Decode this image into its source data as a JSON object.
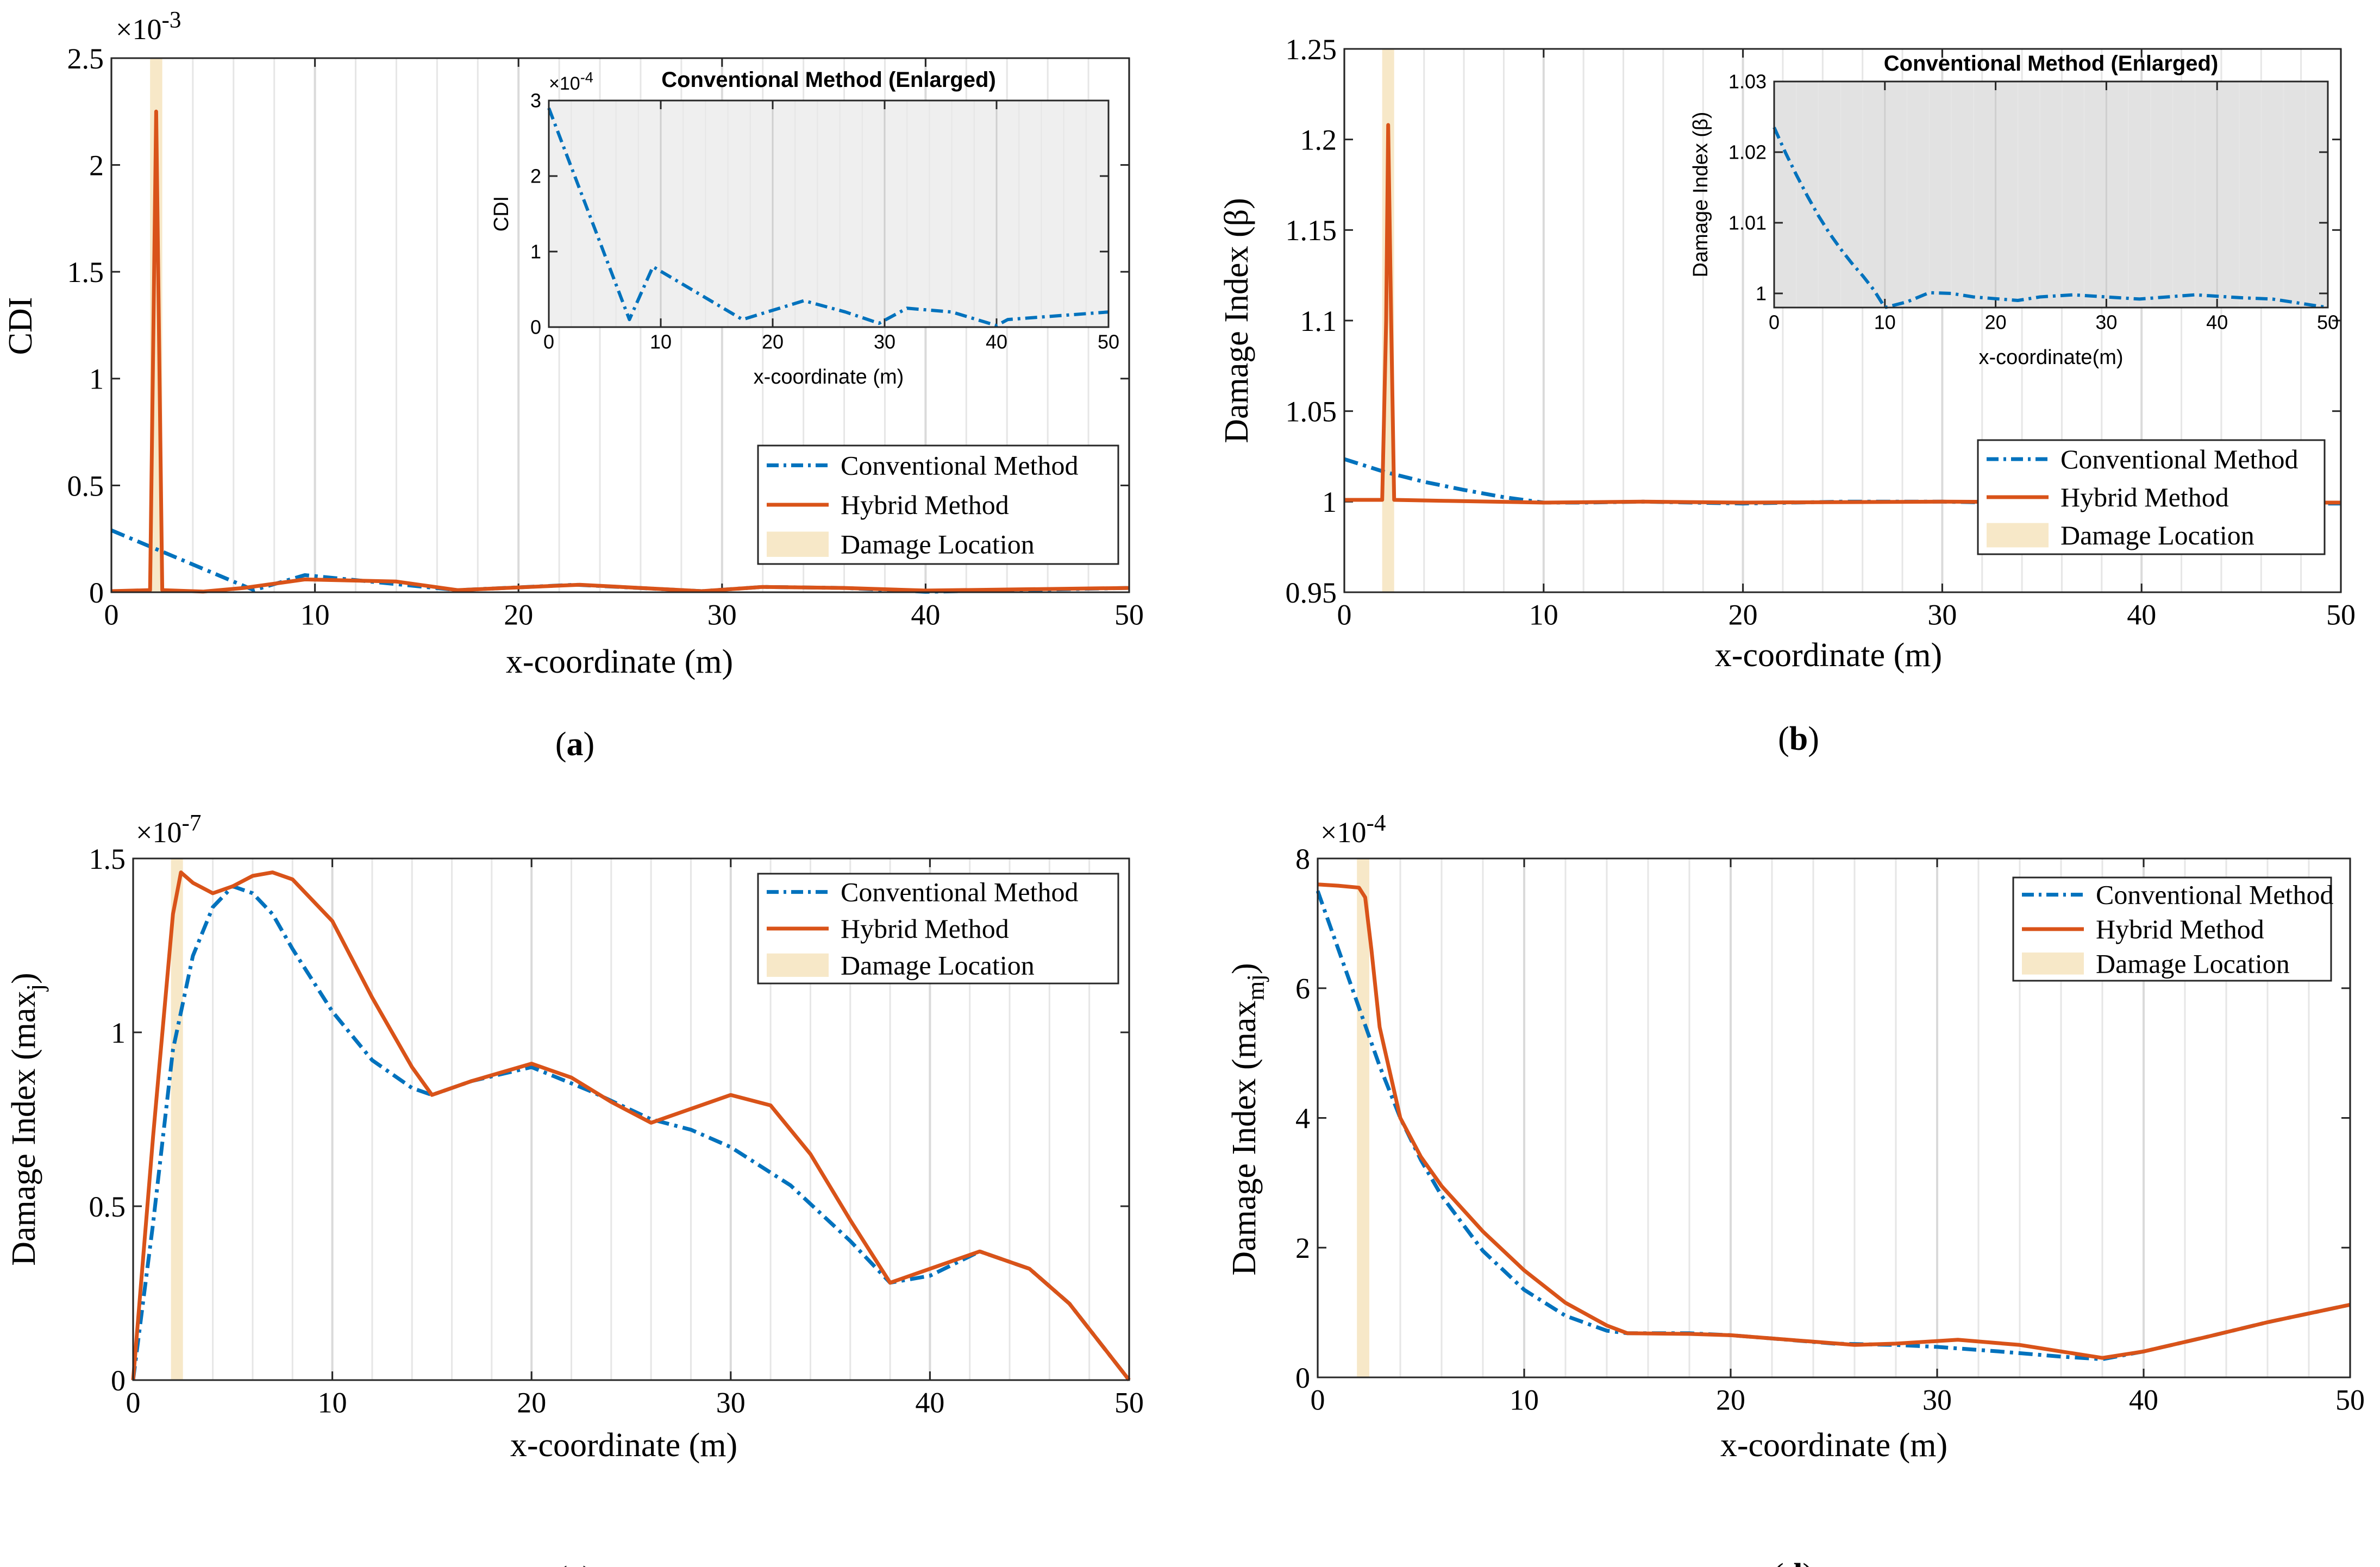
{
  "colors": {
    "conventional": "#0072BD",
    "hybrid": "#D95319",
    "damage": "#F7E8C8",
    "inset_bg_a": "#EFEFEF",
    "inset_bg_b": "#E2E2E2"
  },
  "legend_labels": [
    "Conventional Method",
    "Hybrid Method",
    "Damage Location"
  ],
  "chart_data": [
    {
      "type": "line",
      "panel": "(a)",
      "ylabel": "CDI",
      "xlabel": "x-coordinate (m)",
      "xlim": [
        0,
        50
      ],
      "ylim": [
        0,
        2.5
      ],
      "exponent": "×10-3",
      "yticks": [
        "0",
        "0.5",
        "1",
        "1.5",
        "2",
        "2.5"
      ],
      "xticks": [
        "0",
        "10",
        "20",
        "30",
        "40",
        "50"
      ],
      "legend": "bottom-right",
      "damage_band": [
        1.9,
        2.5
      ],
      "series": [
        {
          "name": "Conventional Method",
          "x": [
            0,
            7,
            9.5,
            17,
            22.8,
            29,
            32,
            36,
            40,
            50
          ],
          "y": [
            0.29,
            0.01,
            0.08,
            0.01,
            0.035,
            0.005,
            0.025,
            0.02,
            0.002,
            0.02
          ]
        },
        {
          "name": "Hybrid Method",
          "x": [
            0,
            1.9,
            2.2,
            2.5,
            4.5,
            6.5,
            9.5,
            14,
            17,
            23,
            29,
            32,
            36,
            40,
            50
          ],
          "y": [
            0.005,
            0.01,
            2.25,
            0.01,
            0.003,
            0.02,
            0.06,
            0.05,
            0.01,
            0.035,
            0.005,
            0.025,
            0.02,
            0.008,
            0.02
          ]
        }
      ],
      "inset": {
        "title": "Conventional Method (Enlarged)",
        "ylabel": "CDI",
        "xlabel": "x-coordinate (m)",
        "exponent": "×10-4",
        "xlim": [
          0,
          50
        ],
        "ylim": [
          0,
          3
        ],
        "yticks": [
          "0",
          "1",
          "2",
          "3"
        ],
        "xticks": [
          "0",
          "10",
          "20",
          "30",
          "40",
          "50"
        ],
        "series": [
          {
            "name": "Conventional Method",
            "x": [
              0,
              7.2,
              9.3,
              17.3,
              22.8,
              26.5,
              29.5,
              32,
              36,
              40,
              41,
              50
            ],
            "y": [
              2.9,
              0.1,
              0.8,
              0.1,
              0.35,
              0.2,
              0.05,
              0.25,
              0.2,
              0.02,
              0.1,
              0.2
            ]
          }
        ]
      }
    },
    {
      "type": "line",
      "panel": "(b)",
      "ylabel": "Damage Index (β)",
      "xlabel": "x-coordinate (m)",
      "xlim": [
        0,
        50
      ],
      "ylim": [
        0.95,
        1.25
      ],
      "yticks": [
        "0.95",
        "1",
        "1.05",
        "1.1",
        "1.15",
        "1.2",
        "1.25"
      ],
      "xticks": [
        "0",
        "10",
        "20",
        "30",
        "40",
        "50"
      ],
      "legend": "bottom-right",
      "damage_band": [
        1.9,
        2.5
      ],
      "series": [
        {
          "name": "Conventional Method",
          "x": [
            0,
            2,
            4,
            6,
            8,
            10,
            12,
            15,
            20,
            25,
            30,
            35,
            40,
            45,
            50
          ],
          "y": [
            1.0235,
            1.0165,
            1.011,
            1.0065,
            1.0025,
            0.9995,
            0.9995,
            1.0,
            0.999,
            1.0,
            1.0,
            0.999,
            1.0,
            0.999,
            0.999
          ]
        },
        {
          "name": "Hybrid Method",
          "x": [
            0,
            1.9,
            2.1,
            2.2,
            2.35,
            2.5,
            5,
            10,
            15,
            20,
            30,
            40,
            50
          ],
          "y": [
            1.001,
            1.001,
            1.1,
            1.208,
            1.1,
            1.001,
            1.0005,
            0.9995,
            1.0,
            0.9995,
            1.0,
            0.9995,
            0.9995
          ]
        }
      ],
      "inset": {
        "title": "Conventional Method (Enlarged)",
        "ylabel": "Damage Index (β)",
        "xlabel": "x-coordinate(m)",
        "xlim": [
          0,
          50
        ],
        "ylim": [
          0.998,
          1.03
        ],
        "yticks": [
          "1",
          "1.01",
          "1.02",
          "1.03"
        ],
        "ytick_values": [
          1.0,
          1.01,
          1.02,
          1.03
        ],
        "xticks": [
          "0",
          "10",
          "20",
          "30",
          "40",
          "50"
        ],
        "series": [
          {
            "name": "Conventional Method",
            "x": [
              0,
              1,
              2,
              3,
              4,
              5,
              6,
              7,
              8,
              9,
              10,
              12,
              14,
              16,
              18,
              22,
              24,
              27,
              30,
              33,
              38,
              42,
              45,
              50
            ],
            "y": [
              1.0235,
              1.02,
              1.0168,
              1.0138,
              1.011,
              1.0085,
              1.0063,
              1.0043,
              1.0025,
              1.0005,
              0.998,
              0.9988,
              1.0001,
              1.0,
              0.9995,
              0.999,
              0.9995,
              0.9998,
              0.9995,
              0.9992,
              0.9998,
              0.9994,
              0.9992,
              0.998
            ]
          }
        ]
      }
    },
    {
      "type": "line",
      "panel": "(c)",
      "ylabel": "Damage Index (maxj)",
      "ylabel_main": "Damage Index (max",
      "ylabel_sub": "j",
      "ylabel_close": ")",
      "xlabel": "x-coordinate (m)",
      "xlim": [
        0,
        50
      ],
      "ylim": [
        0,
        1.5
      ],
      "exponent": "×10-7",
      "yticks": [
        "0",
        "0.5",
        "1",
        "1.5"
      ],
      "xticks": [
        "0",
        "10",
        "20",
        "30",
        "40",
        "50"
      ],
      "legend": "top-right",
      "damage_band": [
        1.9,
        2.5
      ],
      "series": [
        {
          "name": "Conventional Method",
          "x": [
            0,
            1,
            2,
            3,
            4,
            5,
            6,
            7,
            8,
            10,
            12,
            14,
            15,
            17,
            20,
            23,
            26,
            28,
            30,
            33,
            36,
            38,
            40,
            42.5,
            45,
            47,
            50
          ],
          "y": [
            0,
            0.45,
            0.95,
            1.22,
            1.36,
            1.42,
            1.4,
            1.34,
            1.24,
            1.06,
            0.92,
            0.84,
            0.82,
            0.86,
            0.9,
            0.83,
            0.75,
            0.72,
            0.67,
            0.56,
            0.4,
            0.28,
            0.3,
            0.37,
            0.32,
            0.22,
            0
          ]
        },
        {
          "name": "Hybrid Method",
          "x": [
            0,
            1,
            2,
            2.4,
            3,
            4,
            5,
            6,
            7,
            8,
            10,
            12,
            14,
            15,
            17,
            20,
            22,
            24,
            26,
            28,
            30,
            32,
            34,
            36,
            38,
            40,
            42.5,
            45,
            47,
            50
          ],
          "y": [
            0,
            0.7,
            1.34,
            1.46,
            1.43,
            1.4,
            1.42,
            1.45,
            1.46,
            1.44,
            1.32,
            1.1,
            0.9,
            0.82,
            0.86,
            0.91,
            0.87,
            0.8,
            0.74,
            0.78,
            0.82,
            0.79,
            0.65,
            0.46,
            0.28,
            0.32,
            0.37,
            0.32,
            0.22,
            0
          ]
        }
      ]
    },
    {
      "type": "line",
      "panel": "(d)",
      "ylabel": "Damage Index (maxmj)",
      "ylabel_main": "Damage Index (max",
      "ylabel_sub": "mj",
      "ylabel_close": ")",
      "xlabel": "x-coordinate (m)",
      "xlim": [
        0,
        50
      ],
      "ylim": [
        0,
        8
      ],
      "exponent": "×10-4",
      "yticks": [
        "0",
        "2",
        "4",
        "6",
        "8"
      ],
      "xticks": [
        "0",
        "10",
        "20",
        "30",
        "40",
        "50"
      ],
      "legend": "top-right",
      "damage_band": [
        1.9,
        2.5
      ],
      "series": [
        {
          "name": "Conventional Method",
          "x": [
            0,
            1,
            2,
            3,
            4,
            5,
            6,
            8,
            10,
            12,
            14,
            15,
            18,
            20,
            22,
            25,
            28,
            30,
            33,
            36,
            38,
            40,
            43,
            46,
            50
          ],
          "y": [
            7.5,
            6.6,
            5.7,
            4.8,
            4.0,
            3.35,
            2.8,
            1.95,
            1.35,
            0.95,
            0.72,
            0.68,
            0.68,
            0.65,
            0.6,
            0.52,
            0.5,
            0.47,
            0.4,
            0.32,
            0.28,
            0.4,
            0.62,
            0.85,
            1.12
          ]
        },
        {
          "name": "Hybrid Method",
          "x": [
            0,
            1,
            2,
            2.3,
            2.6,
            3,
            4,
            5,
            6,
            8,
            10,
            12,
            14,
            15,
            18,
            20,
            22,
            24,
            26,
            28,
            31,
            34,
            36,
            38,
            40,
            43,
            46,
            50
          ],
          "y": [
            7.6,
            7.58,
            7.55,
            7.4,
            6.6,
            5.4,
            4.0,
            3.4,
            2.95,
            2.25,
            1.65,
            1.15,
            0.8,
            0.68,
            0.67,
            0.65,
            0.6,
            0.55,
            0.5,
            0.52,
            0.58,
            0.5,
            0.4,
            0.3,
            0.4,
            0.62,
            0.85,
            1.12
          ]
        }
      ]
    }
  ]
}
